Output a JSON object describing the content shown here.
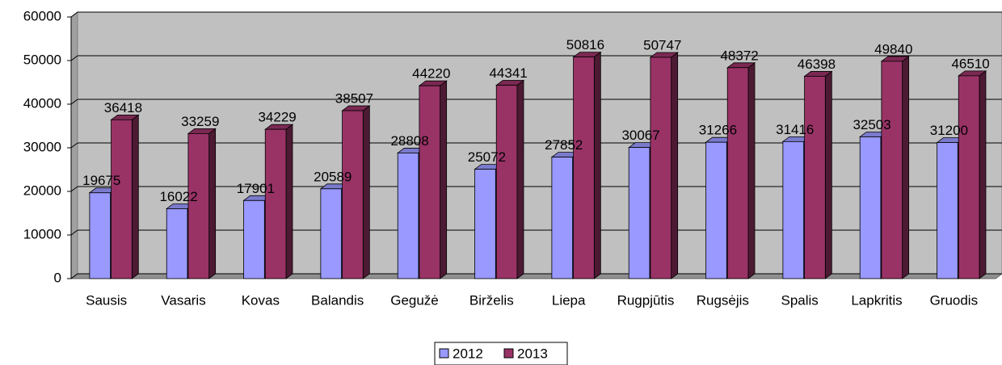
{
  "chart_data": {
    "type": "bar",
    "categories": [
      "Sausis",
      "Vasaris",
      "Kovas",
      "Balandis",
      "Gegužė",
      "Birželis",
      "Liepa",
      "Rugpjūtis",
      "Rugsėjis",
      "Spalis",
      "Lapkritis",
      "Gruodis"
    ],
    "series": [
      {
        "name": "2012",
        "color": "#9999ff",
        "values": [
          19675,
          16022,
          17901,
          20589,
          28808,
          25072,
          27852,
          30067,
          31266,
          31416,
          32503,
          31200
        ]
      },
      {
        "name": "2013",
        "color": "#993366",
        "values": [
          36418,
          33259,
          34229,
          38507,
          44220,
          44341,
          50816,
          50747,
          48372,
          46398,
          49840,
          46510
        ]
      }
    ],
    "ylim": [
      0,
      60000
    ],
    "yticks": [
      0,
      10000,
      20000,
      30000,
      40000,
      50000,
      60000
    ],
    "grid": true,
    "legend": "bottom"
  }
}
